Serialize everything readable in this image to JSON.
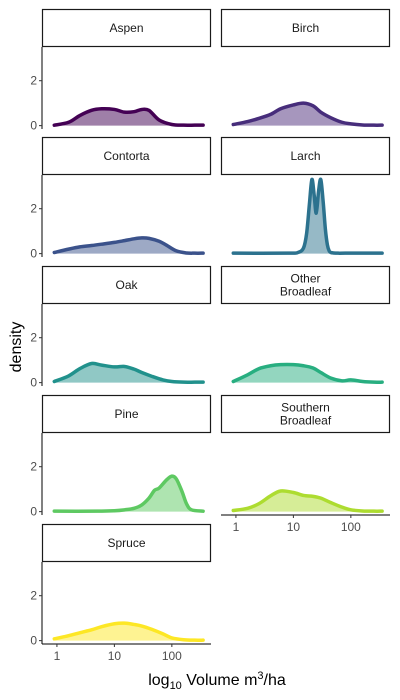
{
  "chart_data": {
    "type": "area",
    "xlabel": {
      "base": "log",
      "sub": "10",
      "main": " Volume m",
      "sup": "3",
      "unit": "/ha"
    },
    "ylabel": "density",
    "x_scale": "log10",
    "xlim": [
      0.55,
      480
    ],
    "ylim": [
      -0.15,
      3.5
    ],
    "x_ticks": [
      {
        "value": 1,
        "label": "1"
      },
      {
        "value": 10,
        "label": "10"
      },
      {
        "value": 100,
        "label": "100"
      }
    ],
    "y_ticks": [
      {
        "value": 0,
        "label": "0"
      },
      {
        "value": 2,
        "label": "2"
      }
    ],
    "panels": [
      {
        "name": "Aspen",
        "label_lines": [
          "Aspen"
        ],
        "color": "#440154",
        "fill": "#9f7fa8",
        "x": [
          0.9,
          1.6,
          2.5,
          4,
          6,
          10,
          15,
          22,
          30,
          40,
          60,
          100,
          160,
          250,
          350
        ],
        "y": [
          0.02,
          0.15,
          0.45,
          0.68,
          0.75,
          0.72,
          0.6,
          0.62,
          0.72,
          0.68,
          0.25,
          0.05,
          0.02,
          0.02,
          0.02
        ]
      },
      {
        "name": "Birch",
        "label_lines": [
          "Birch"
        ],
        "color": "#472d7b",
        "fill": "#a696bd",
        "x": [
          0.9,
          1.6,
          2.5,
          4,
          6,
          10,
          15,
          22,
          30,
          45,
          70,
          100,
          160,
          250,
          350
        ],
        "y": [
          0.05,
          0.18,
          0.32,
          0.5,
          0.75,
          0.92,
          1.0,
          0.88,
          0.6,
          0.35,
          0.15,
          0.08,
          0.03,
          0.02,
          0.02
        ]
      },
      {
        "name": "Contorta",
        "label_lines": [
          "Contorta"
        ],
        "color": "#3b528b",
        "fill": "#9da9c5",
        "x": [
          0.9,
          1.6,
          2.5,
          4,
          6,
          10,
          15,
          22,
          30,
          40,
          60,
          80,
          120,
          180,
          250,
          350
        ],
        "y": [
          0.05,
          0.2,
          0.3,
          0.36,
          0.42,
          0.5,
          0.58,
          0.66,
          0.7,
          0.68,
          0.55,
          0.38,
          0.12,
          0.03,
          0.02,
          0.02
        ]
      },
      {
        "name": "Larch",
        "label_lines": [
          "Larch"
        ],
        "color": "#2c728e",
        "fill": "#96b9c6",
        "x": [
          0.9,
          8,
          12,
          15,
          17,
          19,
          21,
          23,
          25,
          27.5,
          30,
          33,
          36,
          39,
          42,
          45,
          50,
          60,
          80,
          350
        ],
        "y": [
          0.02,
          0.02,
          0.05,
          0.25,
          0.9,
          2.2,
          3.3,
          2.6,
          1.8,
          2.8,
          3.3,
          2.3,
          1.1,
          0.4,
          0.12,
          0.05,
          0.03,
          0.02,
          0.02,
          0.02
        ]
      },
      {
        "name": "Oak",
        "label_lines": [
          "Oak"
        ],
        "color": "#21918c",
        "fill": "#90c8c5",
        "x": [
          0.9,
          1.6,
          2.5,
          4,
          6,
          10,
          15,
          22,
          30,
          45,
          70,
          100,
          160,
          250,
          350
        ],
        "y": [
          0.05,
          0.3,
          0.62,
          0.85,
          0.78,
          0.7,
          0.72,
          0.6,
          0.45,
          0.28,
          0.12,
          0.05,
          0.02,
          0.02,
          0.02
        ]
      },
      {
        "name": "Other Broadleaf",
        "label_lines": [
          "Other",
          "Broadleaf"
        ],
        "color": "#28ae80",
        "fill": "#93d6bf",
        "x": [
          0.9,
          1.6,
          2.5,
          4,
          6,
          10,
          15,
          22,
          30,
          45,
          70,
          100,
          160,
          250,
          350
        ],
        "y": [
          0.05,
          0.35,
          0.62,
          0.75,
          0.8,
          0.8,
          0.75,
          0.65,
          0.45,
          0.2,
          0.08,
          0.12,
          0.05,
          0.02,
          0.02
        ]
      },
      {
        "name": "Pine",
        "label_lines": [
          "Pine"
        ],
        "color": "#5ec962",
        "fill": "#aee4b0",
        "x": [
          0.9,
          5,
          10,
          15,
          22,
          30,
          40,
          50,
          60,
          80,
          100,
          120,
          150,
          180,
          220,
          350
        ],
        "y": [
          0.02,
          0.02,
          0.04,
          0.08,
          0.15,
          0.3,
          0.6,
          0.95,
          1.05,
          1.4,
          1.58,
          1.45,
          0.9,
          0.35,
          0.08,
          0.02
        ]
      },
      {
        "name": "Southern Broadleaf",
        "label_lines": [
          "Southern",
          "Broadleaf"
        ],
        "color": "#addc30",
        "fill": "#d6ed97",
        "x": [
          0.9,
          1.6,
          2.5,
          4,
          6,
          10,
          15,
          22,
          30,
          45,
          70,
          100,
          160,
          250,
          350
        ],
        "y": [
          0.05,
          0.15,
          0.35,
          0.7,
          0.92,
          0.85,
          0.72,
          0.68,
          0.6,
          0.4,
          0.2,
          0.08,
          0.03,
          0.02,
          0.02
        ]
      },
      {
        "name": "Spruce",
        "label_lines": [
          "Spruce"
        ],
        "color": "#fde725",
        "fill": "#fef392",
        "x": [
          0.9,
          1.6,
          2.5,
          4,
          6,
          10,
          15,
          22,
          30,
          45,
          70,
          100,
          160,
          250,
          350
        ],
        "y": [
          0.08,
          0.22,
          0.35,
          0.48,
          0.62,
          0.75,
          0.78,
          0.72,
          0.65,
          0.5,
          0.3,
          0.12,
          0.04,
          0.02,
          0.02
        ]
      }
    ]
  }
}
